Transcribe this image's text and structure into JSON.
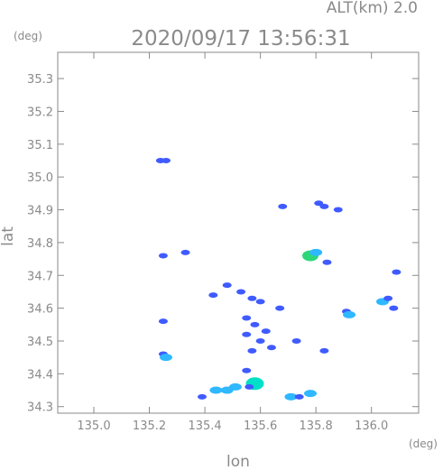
{
  "header": {
    "alt_label": "ALT(km)  2.0",
    "timestamp": "2020/09/17 13:56:31"
  },
  "chart_data": {
    "type": "heatmap",
    "title": "2020/09/17 13:56:31",
    "xlabel": "lon",
    "ylabel": "lat",
    "xunit": "(deg)",
    "yunit": "(deg)",
    "xlim": [
      134.87,
      136.17
    ],
    "ylim": [
      34.28,
      35.38
    ],
    "xticks": [
      "135.0",
      "135.2",
      "135.4",
      "135.6",
      "135.8",
      "136.0"
    ],
    "xtick_values": [
      135.0,
      135.2,
      135.4,
      135.6,
      135.8,
      136.0
    ],
    "yticks": [
      "34.3",
      "34.4",
      "34.5",
      "34.6",
      "34.7",
      "34.8",
      "34.9",
      "35.0",
      "35.1",
      "35.2",
      "35.3"
    ],
    "ytick_values": [
      34.3,
      34.4,
      34.5,
      34.6,
      34.7,
      34.8,
      34.9,
      35.0,
      35.1,
      35.2,
      35.3
    ],
    "grid": false,
    "colors": {
      "weak": "#3f5bff",
      "moderate": "#2fb8ff",
      "strong": "#00e0c8",
      "core": "#2ed67a"
    },
    "echoes": [
      {
        "lon": 135.78,
        "lat": 34.76,
        "level": "core"
      },
      {
        "lon": 135.8,
        "lat": 34.77,
        "level": "moderate"
      },
      {
        "lon": 135.84,
        "lat": 34.74,
        "level": "weak"
      },
      {
        "lon": 135.81,
        "lat": 34.92,
        "level": "weak"
      },
      {
        "lon": 135.83,
        "lat": 34.91,
        "level": "weak"
      },
      {
        "lon": 135.88,
        "lat": 34.9,
        "level": "weak"
      },
      {
        "lon": 135.68,
        "lat": 34.91,
        "level": "weak"
      },
      {
        "lon": 135.24,
        "lat": 35.05,
        "level": "weak"
      },
      {
        "lon": 135.26,
        "lat": 35.05,
        "level": "weak"
      },
      {
        "lon": 135.33,
        "lat": 34.77,
        "level": "weak"
      },
      {
        "lon": 135.25,
        "lat": 34.76,
        "level": "weak"
      },
      {
        "lon": 135.48,
        "lat": 34.67,
        "level": "weak"
      },
      {
        "lon": 135.53,
        "lat": 34.65,
        "level": "weak"
      },
      {
        "lon": 135.57,
        "lat": 34.63,
        "level": "weak"
      },
      {
        "lon": 135.6,
        "lat": 34.62,
        "level": "weak"
      },
      {
        "lon": 135.55,
        "lat": 34.57,
        "level": "weak"
      },
      {
        "lon": 135.58,
        "lat": 34.55,
        "level": "weak"
      },
      {
        "lon": 135.55,
        "lat": 34.52,
        "level": "weak"
      },
      {
        "lon": 135.6,
        "lat": 34.5,
        "level": "weak"
      },
      {
        "lon": 135.57,
        "lat": 34.47,
        "level": "weak"
      },
      {
        "lon": 135.62,
        "lat": 34.53,
        "level": "weak"
      },
      {
        "lon": 135.64,
        "lat": 34.48,
        "level": "weak"
      },
      {
        "lon": 135.67,
        "lat": 34.6,
        "level": "weak"
      },
      {
        "lon": 135.43,
        "lat": 34.64,
        "level": "weak"
      },
      {
        "lon": 135.73,
        "lat": 34.5,
        "level": "weak"
      },
      {
        "lon": 135.83,
        "lat": 34.47,
        "level": "weak"
      },
      {
        "lon": 135.91,
        "lat": 34.59,
        "level": "weak"
      },
      {
        "lon": 135.92,
        "lat": 34.58,
        "level": "moderate"
      },
      {
        "lon": 136.04,
        "lat": 34.62,
        "level": "moderate"
      },
      {
        "lon": 136.06,
        "lat": 34.63,
        "level": "weak"
      },
      {
        "lon": 136.08,
        "lat": 34.6,
        "level": "weak"
      },
      {
        "lon": 136.09,
        "lat": 34.71,
        "level": "weak"
      },
      {
        "lon": 135.25,
        "lat": 34.46,
        "level": "weak"
      },
      {
        "lon": 135.26,
        "lat": 34.45,
        "level": "moderate"
      },
      {
        "lon": 135.25,
        "lat": 34.56,
        "level": "weak"
      },
      {
        "lon": 135.58,
        "lat": 34.37,
        "level": "strong"
      },
      {
        "lon": 135.56,
        "lat": 34.36,
        "level": "weak"
      },
      {
        "lon": 135.55,
        "lat": 34.41,
        "level": "weak"
      },
      {
        "lon": 135.44,
        "lat": 34.35,
        "level": "moderate"
      },
      {
        "lon": 135.48,
        "lat": 34.35,
        "level": "moderate"
      },
      {
        "lon": 135.51,
        "lat": 34.36,
        "level": "moderate"
      },
      {
        "lon": 135.39,
        "lat": 34.33,
        "level": "weak"
      },
      {
        "lon": 135.71,
        "lat": 34.33,
        "level": "moderate"
      },
      {
        "lon": 135.74,
        "lat": 34.33,
        "level": "weak"
      },
      {
        "lon": 135.78,
        "lat": 34.34,
        "level": "moderate"
      }
    ]
  }
}
